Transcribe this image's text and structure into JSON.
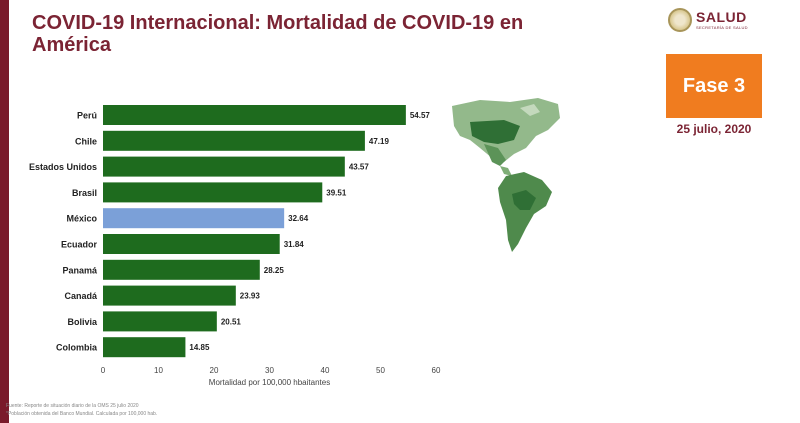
{
  "title": "COVID-19 Internacional: Mortalidad de COVID-19 en América",
  "logo": {
    "name": "SALUD",
    "subtitle": "SECRETARÍA DE SALUD"
  },
  "phase": {
    "label": "Fase 3",
    "date": "25 julio, 2020"
  },
  "footnotes": [
    "Fuente: Reporte de situación diario de la OMS 25 julio 2020",
    "*Población obtenida del Banco Mundial. Calculada por 100,000 hab."
  ],
  "colors": {
    "bar": "#1e6b1e",
    "highlight": "#7ba0d8",
    "title": "#7b2434",
    "phase": "#f07c1f",
    "accent_bar": "#7a1a2b"
  },
  "chart_data": {
    "type": "bar",
    "orientation": "horizontal",
    "categories": [
      "Perú",
      "Chile",
      "Estados Unidos",
      "Brasil",
      "México",
      "Ecuador",
      "Panamá",
      "Canadá",
      "Bolivia",
      "Colombia"
    ],
    "values": [
      54.57,
      47.19,
      43.57,
      39.51,
      32.64,
      31.84,
      28.25,
      23.93,
      20.51,
      14.85
    ],
    "value_labels": [
      "54.57",
      "47.19",
      "43.57",
      "39.51",
      "32.64",
      "31.84",
      "28.25",
      "23.93",
      "20.51",
      "14.85"
    ],
    "highlight": "México",
    "xlabel": "Mortalidad por 100,000 hbaitantes",
    "xlim": [
      0,
      60
    ],
    "xticks": [
      "0",
      "10",
      "20",
      "30",
      "40",
      "50",
      "60"
    ],
    "grid": false,
    "legend": "none"
  }
}
